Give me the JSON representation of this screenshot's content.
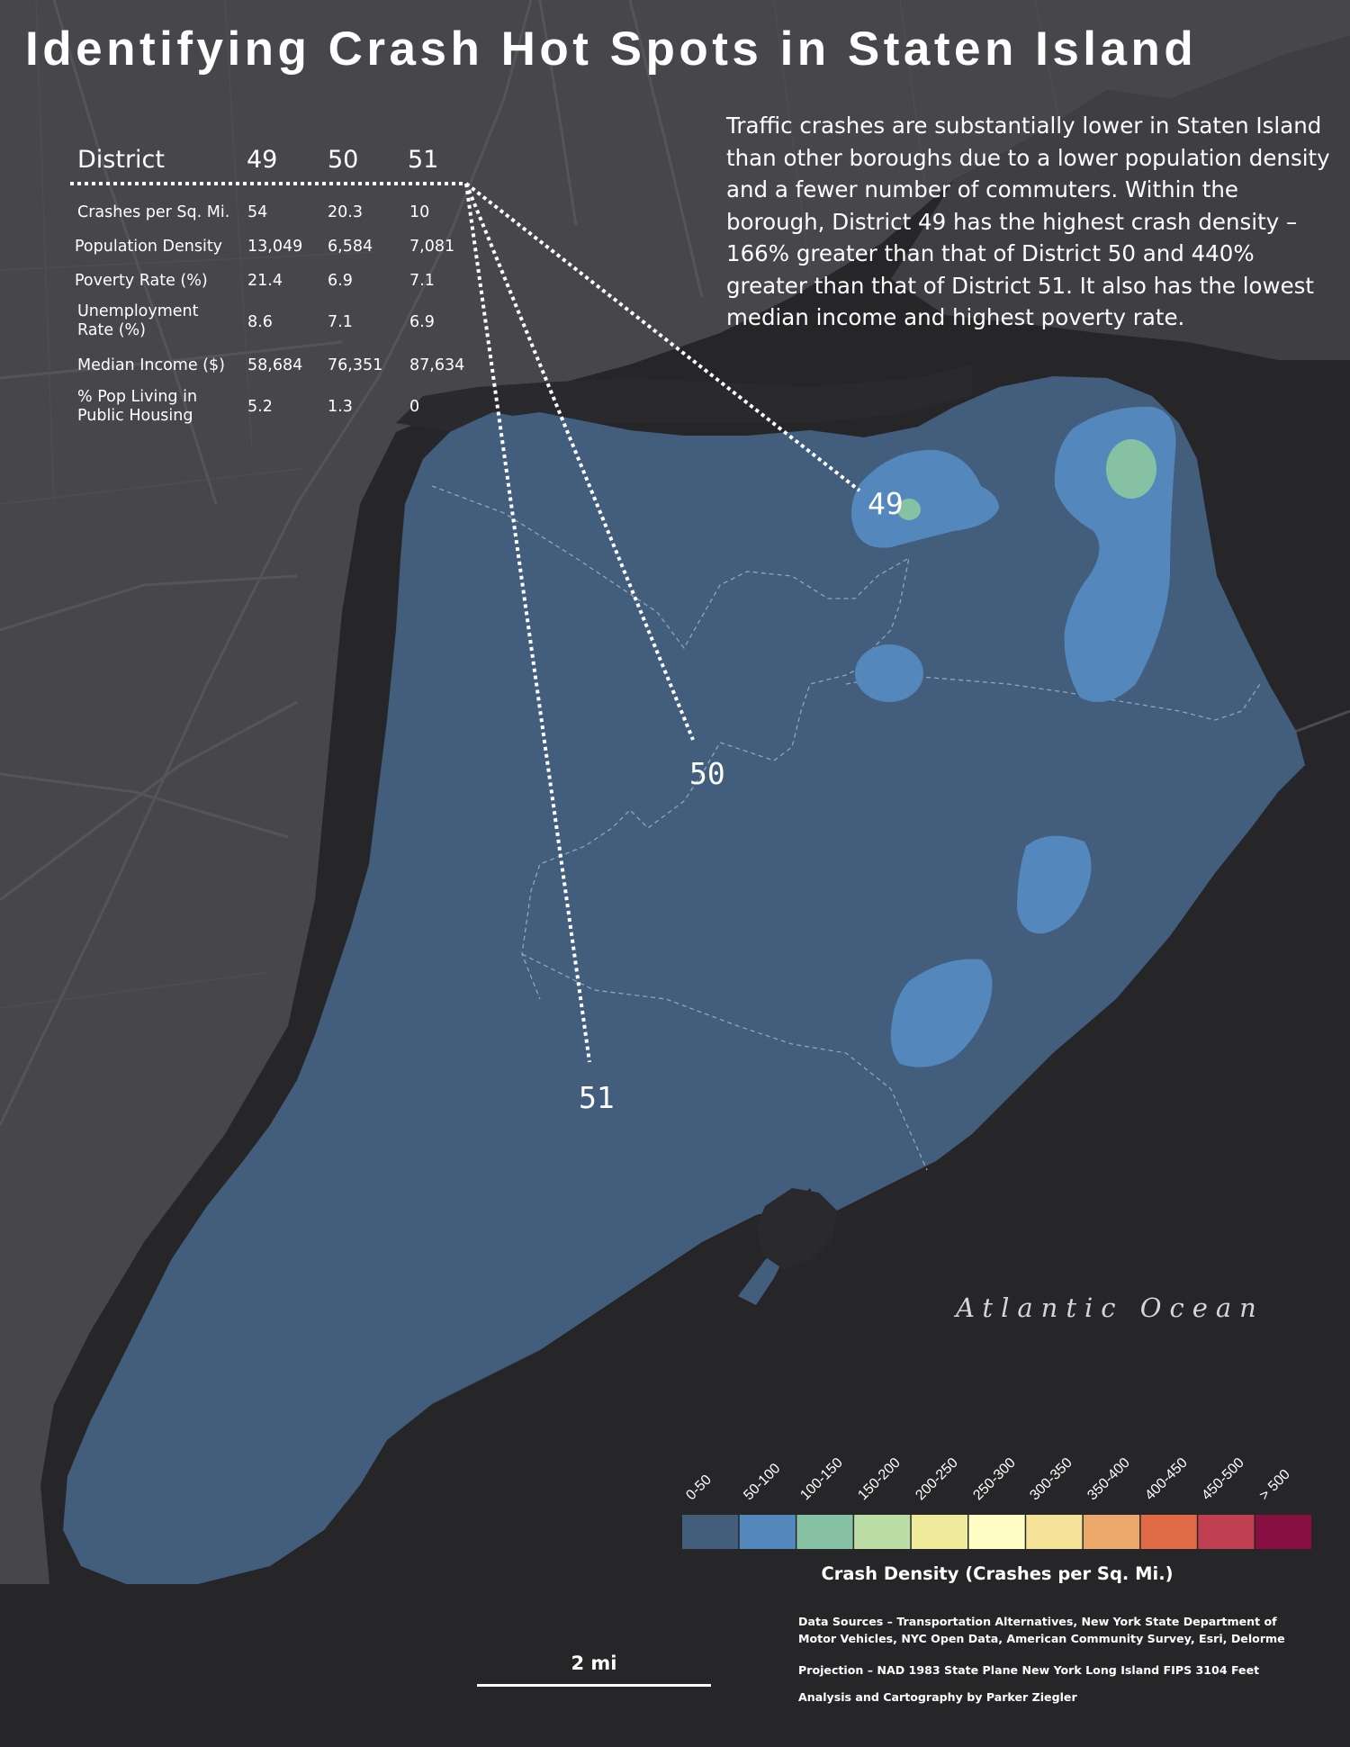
{
  "title": "Identifying Crash Hot Spots in Staten Island",
  "description": "Traffic crashes are substantially lower in Staten Island than other boroughs due to a lower population density and a fewer number of commuters. Within the borough, District 49 has the highest crash density – 166% greater than that of District 50 and 440% greater than that of District 51. It also has the lowest median income and highest poverty rate.",
  "table": {
    "header": [
      "District",
      "49",
      "50",
      "51"
    ],
    "rows": [
      {
        "label": "Crashes per Sq. Mi.",
        "values": [
          "54",
          "20.3",
          "10"
        ]
      },
      {
        "label": "Population Density",
        "values": [
          "13,049",
          "6,584",
          "7,081"
        ]
      },
      {
        "label": "Poverty Rate (%)",
        "values": [
          "21.4",
          "6.9",
          "7.1"
        ]
      },
      {
        "label": "Unemployment Rate (%)",
        "values": [
          "8.6",
          "7.1",
          "6.9"
        ]
      },
      {
        "label": "Median Income ($)",
        "values": [
          "58,684",
          "76,351",
          "87,634"
        ]
      },
      {
        "label": "% Pop Living in Public Housing",
        "values": [
          "5.2",
          "1.3",
          "0"
        ]
      }
    ]
  },
  "district_labels": [
    "49",
    "50",
    "51"
  ],
  "ocean_label": "Atlantic Ocean",
  "legend": {
    "title": "Crash Density (Crashes per Sq. Mi.)",
    "classes": [
      {
        "label": "0-50",
        "color": "#435d7d"
      },
      {
        "label": "50-100",
        "color": "#5487bb"
      },
      {
        "label": "100-150",
        "color": "#86c1a3"
      },
      {
        "label": "150-200",
        "color": "#bcdea6"
      },
      {
        "label": "200-250",
        "color": "#eeeb9c"
      },
      {
        "label": "250-300",
        "color": "#fffdc5"
      },
      {
        "label": "300-350",
        "color": "#f4e398"
      },
      {
        "label": "350-400",
        "color": "#eaa96a"
      },
      {
        "label": "400-450",
        "color": "#df6a45"
      },
      {
        "label": "450-500",
        "color": "#bf3e4f"
      },
      {
        "label": "> 500",
        "color": "#880f42"
      }
    ]
  },
  "credits": {
    "sources_line1": "Data Sources – Transportation Alternatives, New York State Department of",
    "sources_line2": "Motor Vehicles, NYC Open Data, American Community Survey, Esri, Delorme",
    "projection": "Projection – NAD 1983 State Plane New York Long Island FIPS 3104 Feet",
    "author": "Analysis and Cartography by Parker Ziegler"
  },
  "scale_label": "2 mi",
  "colors": {
    "background": "#262629",
    "land": "#47474b",
    "island": "#435d7d",
    "hotspot_medium": "#5487bb",
    "hotspot_high": "#86c1a3"
  }
}
